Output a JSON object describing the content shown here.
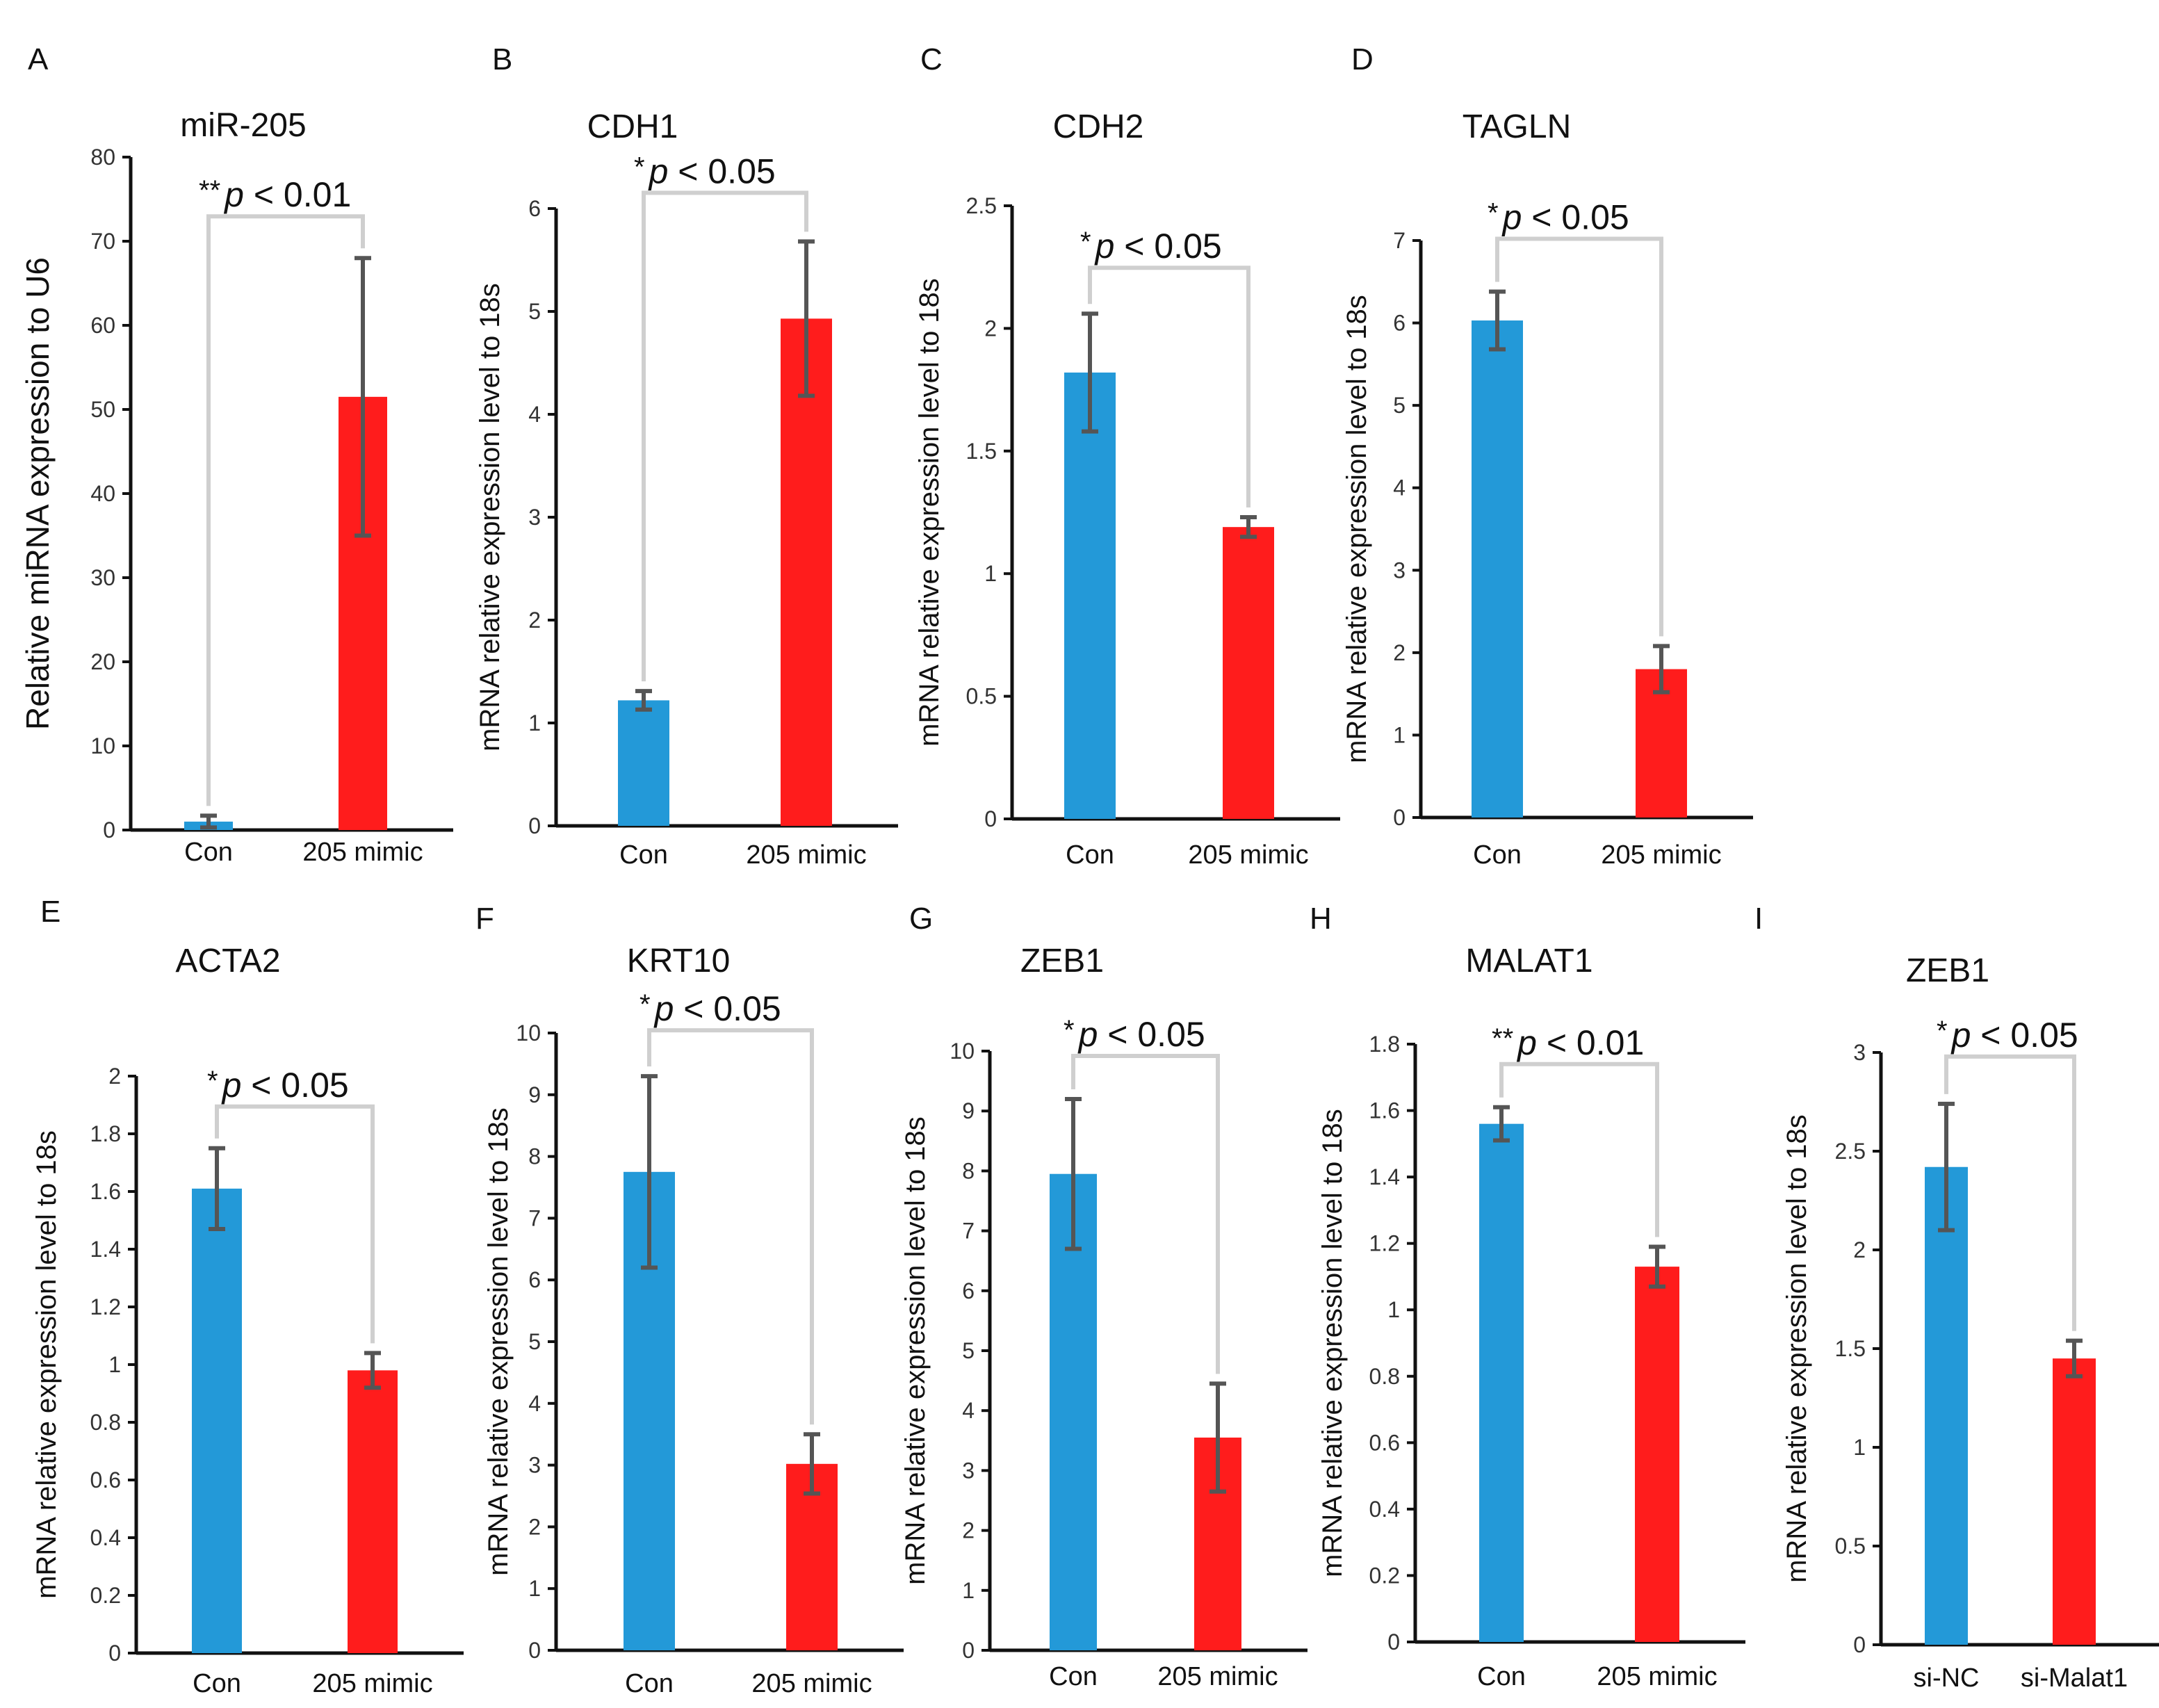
{
  "colors": {
    "con": "#2399d8",
    "mimic": "#ff1c1c",
    "bracket": "#cfcfcf",
    "error_bar": "#555555"
  },
  "chart_data": [
    {
      "panel": "A",
      "type": "bar",
      "title": "miR-205",
      "ylabel": "Relative miRNA expression to U6",
      "categories": [
        "Con",
        "205 mimic"
      ],
      "values": [
        1.0,
        51.5
      ],
      "errors": [
        0.7,
        16.5
      ],
      "ylim": [
        0,
        80
      ],
      "yticks": [
        "0",
        "10",
        "20",
        "30",
        "40",
        "50",
        "60",
        "70",
        "80"
      ],
      "significance": {
        "stars": "**",
        "p": "p",
        "text": " < 0.01"
      }
    },
    {
      "panel": "B",
      "type": "bar",
      "title": "CDH1",
      "ylabel": "mRNA relative expression level to 18s",
      "categories": [
        "Con",
        "205 mimic"
      ],
      "values": [
        1.22,
        4.93
      ],
      "errors": [
        0.09,
        0.75
      ],
      "ylim": [
        0,
        6
      ],
      "yticks": [
        "0",
        "1",
        "2",
        "3",
        "4",
        "5",
        "6"
      ],
      "significance": {
        "stars": "*",
        "p": "p",
        "text": " < 0.05"
      }
    },
    {
      "panel": "C",
      "type": "bar",
      "title": "CDH2",
      "ylabel": "mRNA relative expression level to 18s",
      "categories": [
        "Con",
        "205 mimic"
      ],
      "values": [
        1.82,
        1.19
      ],
      "errors": [
        0.24,
        0.04
      ],
      "ylim": [
        0,
        2.5
      ],
      "yticks": [
        "0",
        "0.5",
        "1",
        "1.5",
        "2",
        "2.5"
      ],
      "significance": {
        "stars": "*",
        "p": "p",
        "text": " < 0.05"
      }
    },
    {
      "panel": "D",
      "type": "bar",
      "title": "TAGLN",
      "ylabel": "mRNA relative expression level to 18s",
      "categories": [
        "Con",
        "205 mimic"
      ],
      "values": [
        6.03,
        1.8
      ],
      "errors": [
        0.35,
        0.28
      ],
      "ylim": [
        0,
        7
      ],
      "yticks": [
        "0",
        "1",
        "2",
        "3",
        "4",
        "5",
        "6",
        "7"
      ],
      "significance": {
        "stars": "*",
        "p": "p",
        "text": " < 0.05"
      }
    },
    {
      "panel": "E",
      "type": "bar",
      "title": "ACTA2",
      "ylabel": "mRNA relative expression level to 18s",
      "categories": [
        "Con",
        "205 mimic"
      ],
      "values": [
        1.61,
        0.98
      ],
      "errors": [
        0.14,
        0.06
      ],
      "ylim": [
        0,
        2
      ],
      "yticks": [
        "0",
        "0.2",
        "0.4",
        "0.6",
        "0.8",
        "1",
        "1.2",
        "1.4",
        "1.6",
        "1.8",
        "2"
      ],
      "significance": {
        "stars": "*",
        "p": "p",
        "text": " < 0.05"
      }
    },
    {
      "panel": "F",
      "type": "bar",
      "title": "KRT10",
      "ylabel": "mRNA relative expression level to 18s",
      "categories": [
        "Con",
        "205 mimic"
      ],
      "values": [
        7.75,
        3.02
      ],
      "errors": [
        1.55,
        0.48
      ],
      "ylim": [
        0,
        10
      ],
      "yticks": [
        "0",
        "1",
        "2",
        "3",
        "4",
        "5",
        "6",
        "7",
        "8",
        "9",
        "10"
      ],
      "significance": {
        "stars": "*",
        "p": "p",
        "text": " < 0.05"
      }
    },
    {
      "panel": "G",
      "type": "bar",
      "title": "ZEB1",
      "ylabel": "mRNA relative expression level to 18s",
      "categories": [
        "Con",
        "205 mimic"
      ],
      "values": [
        7.95,
        3.55
      ],
      "errors": [
        1.25,
        0.9
      ],
      "ylim": [
        0,
        10
      ],
      "yticks": [
        "0",
        "1",
        "2",
        "3",
        "4",
        "5",
        "6",
        "7",
        "8",
        "9",
        "10"
      ],
      "significance": {
        "stars": "*",
        "p": "p",
        "text": " < 0.05"
      }
    },
    {
      "panel": "H",
      "type": "bar",
      "title": "MALAT1",
      "ylabel": "mRNA relative expression level to 18s",
      "categories": [
        "Con",
        "205 mimic"
      ],
      "values": [
        1.56,
        1.13
      ],
      "errors": [
        0.05,
        0.06
      ],
      "ylim": [
        0,
        1.8
      ],
      "yticks": [
        "0",
        "0.2",
        "0.4",
        "0.6",
        "0.8",
        "1",
        "1.2",
        "1.4",
        "1.6",
        "1.8"
      ],
      "significance": {
        "stars": "**",
        "p": "p",
        "text": " < 0.01"
      }
    },
    {
      "panel": "I",
      "type": "bar",
      "title": "ZEB1",
      "ylabel": "mRNA relative expression level to 18s",
      "categories": [
        "si-NC",
        "si-Malat1"
      ],
      "values": [
        2.42,
        1.45
      ],
      "errors": [
        0.32,
        0.09
      ],
      "ylim": [
        0,
        3
      ],
      "yticks": [
        "0",
        "0.5",
        "1",
        "1.5",
        "2",
        "2.5",
        "3"
      ],
      "significance": {
        "stars": "*",
        "p": "p",
        "text": " < 0.05"
      }
    }
  ]
}
